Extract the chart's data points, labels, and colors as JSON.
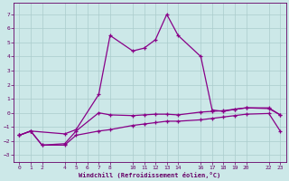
{
  "xlabel": "Windchill (Refroidissement éolien,°C)",
  "background_color": "#cce8e8",
  "grid_color": "#aacccc",
  "line_color": "#880088",
  "xlim": [
    -0.5,
    23.5
  ],
  "ylim": [
    -3.5,
    7.8
  ],
  "xticks": [
    0,
    1,
    2,
    4,
    5,
    6,
    7,
    8,
    10,
    11,
    12,
    13,
    14,
    16,
    17,
    18,
    19,
    20,
    22,
    23
  ],
  "yticks": [
    -3,
    -2,
    -1,
    0,
    1,
    2,
    3,
    4,
    5,
    6,
    7
  ],
  "curve1_x": [
    0,
    1,
    4,
    5,
    7,
    8,
    10,
    11,
    12,
    13,
    14,
    16,
    17,
    18,
    19,
    20,
    22,
    23
  ],
  "curve1_y": [
    -1.6,
    -1.3,
    -1.5,
    -1.2,
    1.3,
    5.5,
    4.4,
    4.6,
    5.2,
    7.0,
    5.5,
    4.0,
    0.2,
    0.1,
    0.25,
    0.35,
    0.3,
    -0.15
  ],
  "curve2_x": [
    0,
    1,
    2,
    4,
    5,
    7,
    8,
    10,
    11,
    12,
    13,
    14,
    16,
    17,
    18,
    19,
    20,
    22,
    23
  ],
  "curve2_y": [
    -1.6,
    -1.3,
    -2.3,
    -2.2,
    -1.3,
    0.0,
    -0.15,
    -0.2,
    -0.15,
    -0.1,
    -0.1,
    -0.15,
    0.05,
    0.1,
    0.15,
    0.25,
    0.35,
    0.35,
    -0.15
  ],
  "curve3_x": [
    0,
    1,
    2,
    4,
    5,
    7,
    8,
    10,
    11,
    12,
    13,
    14,
    16,
    17,
    18,
    19,
    20,
    22,
    23
  ],
  "curve3_y": [
    -1.6,
    -1.3,
    -2.3,
    -2.3,
    -1.6,
    -1.3,
    -1.2,
    -0.9,
    -0.8,
    -0.7,
    -0.6,
    -0.6,
    -0.5,
    -0.4,
    -0.3,
    -0.2,
    -0.1,
    -0.05,
    -1.3
  ]
}
